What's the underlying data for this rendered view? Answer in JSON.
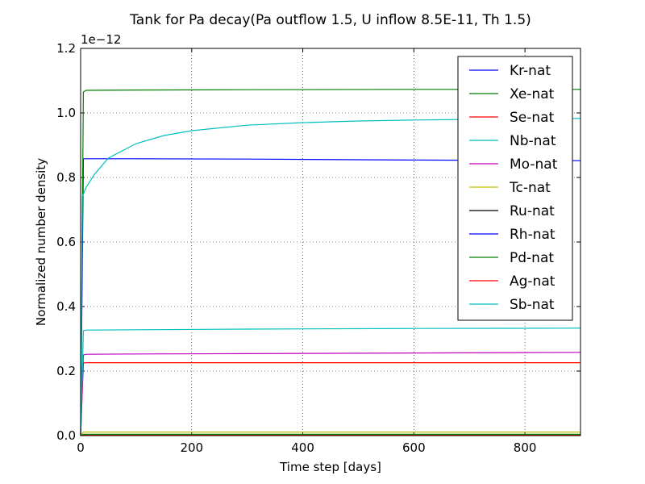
{
  "chart_data": {
    "type": "line",
    "title": "Tank for Pa decay(Pa outflow 1.5, U inflow 8.5E-11, Th 1.5)",
    "xlabel": "Time step [days]",
    "ylabel": "Normalized number density",
    "y_offset_label": "1e−12",
    "xlim": [
      0,
      900
    ],
    "ylim": [
      0.0,
      1.2
    ],
    "x_ticks": [
      0,
      200,
      400,
      600,
      800
    ],
    "x_tick_labels": [
      "0",
      "200",
      "400",
      "600",
      "800"
    ],
    "y_ticks": [
      0.0,
      0.2,
      0.4,
      0.6,
      0.8,
      1.0,
      1.2
    ],
    "y_tick_labels": [
      "0.0",
      "0.2",
      "0.4",
      "0.6",
      "0.8",
      "1.0",
      "1.2"
    ],
    "grid": true,
    "legend_position": "top-right",
    "series": [
      {
        "name": "Kr-nat",
        "color": "#0000ff",
        "x": [
          0,
          5,
          10,
          100,
          300,
          600,
          900
        ],
        "y": [
          0.0,
          0.858,
          0.858,
          0.858,
          0.857,
          0.854,
          0.852
        ]
      },
      {
        "name": "Xe-nat",
        "color": "#008000",
        "x": [
          0,
          5,
          10,
          100,
          300,
          600,
          900
        ],
        "y": [
          0.0,
          1.065,
          1.07,
          1.071,
          1.072,
          1.073,
          1.073
        ]
      },
      {
        "name": "Se-nat",
        "color": "#ff0000",
        "x": [
          0,
          5,
          10,
          100,
          300,
          600,
          900
        ],
        "y": [
          0.0,
          0.225,
          0.226,
          0.226,
          0.226,
          0.226,
          0.226
        ]
      },
      {
        "name": "Nb-nat",
        "color": "#00bfbf",
        "x": [
          0,
          3,
          10,
          25,
          50,
          100,
          150,
          200,
          300,
          400,
          500,
          600,
          700,
          800,
          900
        ],
        "y": [
          0.0,
          0.74,
          0.77,
          0.81,
          0.86,
          0.905,
          0.93,
          0.945,
          0.962,
          0.97,
          0.975,
          0.978,
          0.98,
          0.982,
          0.983
        ]
      },
      {
        "name": "Mo-nat",
        "color": "#bf00bf",
        "x": [
          0,
          5,
          10,
          100,
          300,
          600,
          900
        ],
        "y": [
          0.0,
          0.25,
          0.252,
          0.253,
          0.254,
          0.256,
          0.258
        ]
      },
      {
        "name": "Tc-nat",
        "color": "#bfbf00",
        "x": [
          0,
          5,
          10,
          100,
          300,
          600,
          900
        ],
        "y": [
          0.0,
          0.011,
          0.011,
          0.011,
          0.011,
          0.011,
          0.011
        ]
      },
      {
        "name": "Ru-nat",
        "color": "#000000",
        "x": [
          0,
          5,
          10,
          100,
          300,
          600,
          900
        ],
        "y": [
          0.0,
          0.002,
          0.002,
          0.002,
          0.002,
          0.002,
          0.002
        ]
      },
      {
        "name": "Rh-nat",
        "color": "#0000ff",
        "x": [
          0,
          5,
          10,
          100,
          300,
          600,
          900
        ],
        "y": [
          0.0,
          0.003,
          0.003,
          0.003,
          0.003,
          0.003,
          0.003
        ]
      },
      {
        "name": "Pd-nat",
        "color": "#008000",
        "x": [
          0,
          5,
          10,
          100,
          300,
          600,
          900
        ],
        "y": [
          0.0,
          0.004,
          0.004,
          0.004,
          0.004,
          0.004,
          0.004
        ]
      },
      {
        "name": "Ag-nat",
        "color": "#ff0000",
        "x": [
          0,
          5,
          10,
          100,
          300,
          600,
          900
        ],
        "y": [
          0.0,
          0.001,
          0.001,
          0.001,
          0.001,
          0.001,
          0.001
        ]
      },
      {
        "name": "Sb-nat",
        "color": "#00bfbf",
        "x": [
          0,
          5,
          10,
          100,
          300,
          600,
          900
        ],
        "y": [
          0.0,
          0.325,
          0.327,
          0.328,
          0.33,
          0.332,
          0.333
        ]
      }
    ]
  }
}
